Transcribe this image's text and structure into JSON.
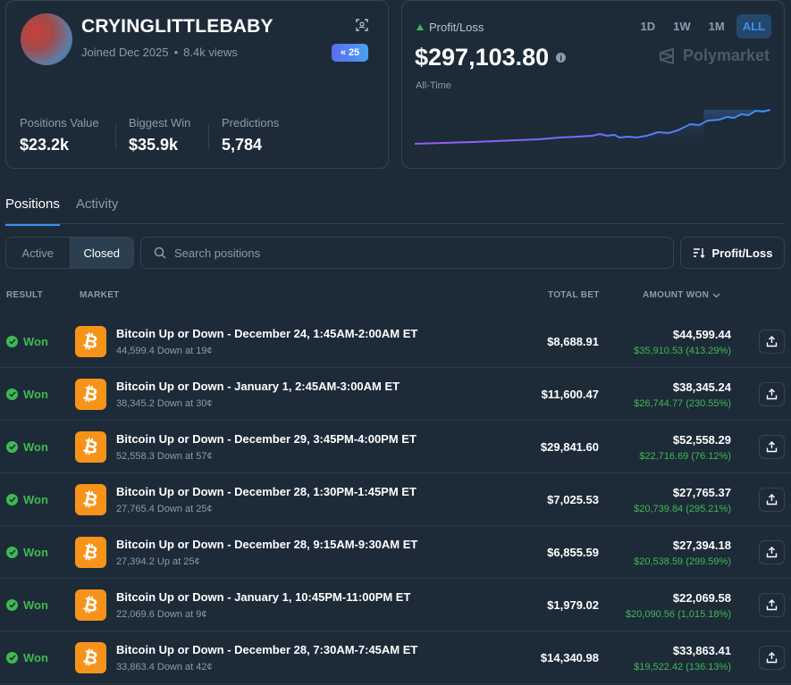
{
  "profile": {
    "username": "CRYINGLITTLEBABY",
    "joined": "Joined Dec 2025",
    "views": "8.4k views",
    "badge_count": "25",
    "stats": [
      {
        "label": "Positions Value",
        "value": "$23.2k"
      },
      {
        "label": "Biggest Win",
        "value": "$35.9k"
      },
      {
        "label": "Predictions",
        "value": "5,784"
      }
    ]
  },
  "pnl": {
    "label": "Profit/Loss",
    "value": "$297,103.80",
    "sub": "All-Time",
    "ranges": [
      "1D",
      "1W",
      "1M",
      "ALL"
    ],
    "active_range": "ALL",
    "brand": "Polymarket"
  },
  "tabs": [
    "Positions",
    "Activity"
  ],
  "filter": {
    "active": "Active",
    "closed": "Closed"
  },
  "search": {
    "placeholder": "Search positions"
  },
  "sort_button": "Profit/Loss",
  "columns": {
    "result": "RESULT",
    "market": "MARKET",
    "total_bet": "TOTAL BET",
    "amount_won": "AMOUNT WON"
  },
  "positions": [
    {
      "result": "Won",
      "market": "Bitcoin Up or Down - December 24, 1:45AM-2:00AM ET",
      "detail": "44,599.4 Down at 19¢",
      "total_bet": "$8,688.91",
      "amount_won": "$44,599.44",
      "profit": "$35,910.53 (413.29%)"
    },
    {
      "result": "Won",
      "market": "Bitcoin Up or Down - January 1, 2:45AM-3:00AM ET",
      "detail": "38,345.2 Down at 30¢",
      "total_bet": "$11,600.47",
      "amount_won": "$38,345.24",
      "profit": "$26,744.77 (230.55%)"
    },
    {
      "result": "Won",
      "market": "Bitcoin Up or Down - December 29, 3:45PM-4:00PM ET",
      "detail": "52,558.3 Down at 57¢",
      "total_bet": "$29,841.60",
      "amount_won": "$52,558.29",
      "profit": "$22,716.69 (76.12%)"
    },
    {
      "result": "Won",
      "market": "Bitcoin Up or Down - December 28, 1:30PM-1:45PM ET",
      "detail": "27,765.4 Down at 25¢",
      "total_bet": "$7,025.53",
      "amount_won": "$27,765.37",
      "profit": "$20,739.84 (295.21%)"
    },
    {
      "result": "Won",
      "market": "Bitcoin Up or Down - December 28, 9:15AM-9:30AM ET",
      "detail": "27,394.2 Up at 25¢",
      "total_bet": "$6,855.59",
      "amount_won": "$27,394.18",
      "profit": "$20,538.59 (299.59%)"
    },
    {
      "result": "Won",
      "market": "Bitcoin Up or Down - January 1, 10:45PM-11:00PM ET",
      "detail": "22,069.6 Down at 9¢",
      "total_bet": "$1,979.02",
      "amount_won": "$22,069.58",
      "profit": "$20,090.56 (1,015.18%)"
    },
    {
      "result": "Won",
      "market": "Bitcoin Up or Down - December 28, 7:30AM-7:45AM ET",
      "detail": "33,863.4 Down at 42¢",
      "total_bet": "$14,340.98",
      "amount_won": "$33,863.41",
      "profit": "$19,522.42 (136.13%)"
    }
  ],
  "colors": {
    "accent": "#3b8ff6",
    "win": "#3fb950",
    "bitcoin": "#f7931a",
    "background": "#1d2b39"
  }
}
